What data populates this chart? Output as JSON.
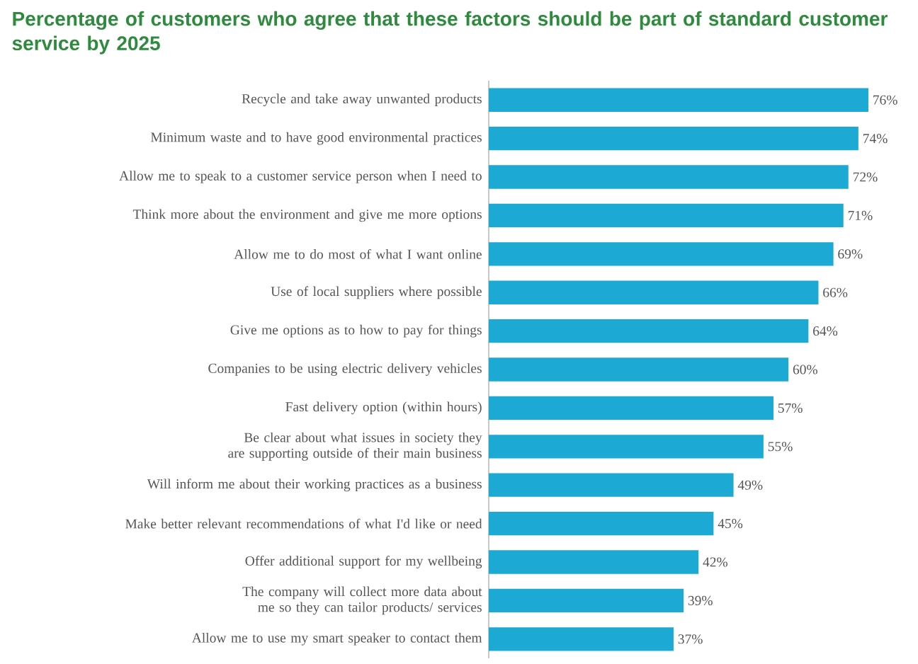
{
  "chart_data": {
    "type": "bar",
    "orientation": "horizontal",
    "title": "Percentage of customers who agree that these factors should be part of standard customer service by 2025",
    "categories": [
      "Recycle and take away unwanted products",
      "Minimum waste and to have good environmental practices",
      "Allow me to speak to a customer service person when I need to",
      "Think more about the environment and give me more options",
      "Allow me to do most of what I want online",
      "Use of local suppliers where possible",
      "Give me options as to how to pay for things",
      "Companies to be using electric delivery vehicles",
      "Fast delivery option (within hours)",
      "Be clear about what issues in society they are supporting outside of their main business",
      "Will inform me about their working practices as a business",
      "Make better relevant recommendations of what I'd like or need",
      "Offer additional support for my wellbeing",
      "The company will collect more data about me so they can tailor products/ services",
      "Allow me to use my smart speaker to contact them"
    ],
    "values": [
      76,
      74,
      72,
      71,
      69,
      66,
      64,
      60,
      57,
      55,
      49,
      45,
      42,
      39,
      37
    ],
    "value_labels": [
      "76%",
      "74%",
      "72%",
      "71%",
      "69%",
      "66%",
      "64%",
      "60%",
      "57%",
      "55%",
      "49%",
      "45%",
      "42%",
      "39%",
      "37%"
    ],
    "color": "#1ca9d4",
    "tick_labels": "y"
  }
}
